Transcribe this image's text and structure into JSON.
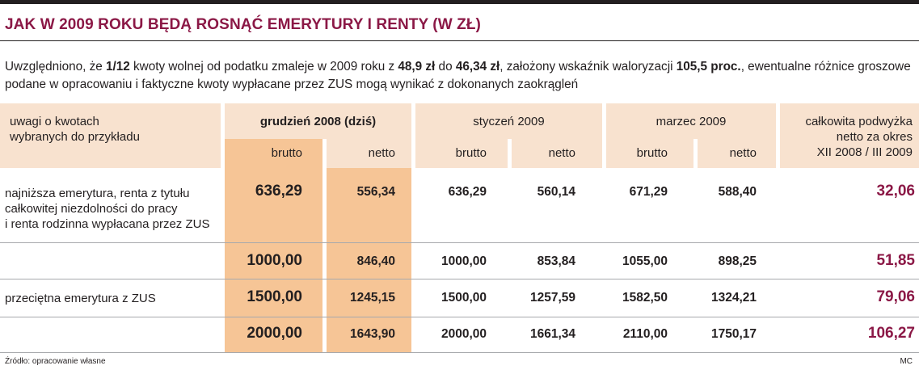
{
  "title": "JAK W 2009 ROKU BĘDĄ ROSNĄĆ EMERYTURY I RENTY (W ZŁ)",
  "intro": {
    "p1": "Uwzględniono, że ",
    "b1": "1/12",
    "p2": " kwoty wolnej od podatku zmaleje w 2009 roku z ",
    "b2": "48,9 zł",
    "p3": " do ",
    "b3": "46,34 zł",
    "p4": ", założony wskaźnik waloryzacji ",
    "b4": "105,5 proc.",
    "p5": ", ewentualne różnice groszowe podane w opracowaniu i faktyczne kwoty wypłacane przez ZUS mogą wynikać z dokonanych zaokrągleń"
  },
  "table": {
    "header": {
      "notes_line1": "uwagi o kwotach",
      "notes_line2": "wybranych do przykładu",
      "dec2008": "grudzień 2008 (dziś)",
      "jan2009": "styczeń 2009",
      "mar2009": "marzec 2009",
      "raise_line1": "całkowita podwyżka",
      "raise_line2": "netto za okres",
      "raise_line3": "XII 2008 / III 2009",
      "brutto": "brutto",
      "netto": "netto"
    },
    "rows": [
      {
        "label_lines": [
          "najniższa emerytura, renta z tytułu",
          "całkowitej niezdolności do pracy",
          "i renta rodzinna wypłacana przez ZUS"
        ],
        "dec_brutto": "636,29",
        "dec_netto": "556,34",
        "jan_brutto": "636,29",
        "jan_netto": "560,14",
        "mar_brutto": "671,29",
        "mar_netto": "588,40",
        "raise": "32,06"
      },
      {
        "label_lines": [],
        "dec_brutto": "1000,00",
        "dec_netto": "846,40",
        "jan_brutto": "1000,00",
        "jan_netto": "853,84",
        "mar_brutto": "1055,00",
        "mar_netto": "898,25",
        "raise": "51,85"
      },
      {
        "label_lines": [
          "przeciętna emerytura z ZUS"
        ],
        "dec_brutto": "1500,00",
        "dec_netto": "1245,15",
        "jan_brutto": "1500,00",
        "jan_netto": "1257,59",
        "mar_brutto": "1582,50",
        "mar_netto": "1324,21",
        "raise": "79,06"
      },
      {
        "label_lines": [],
        "dec_brutto": "2000,00",
        "dec_netto": "1643,90",
        "jan_brutto": "2000,00",
        "jan_netto": "1661,34",
        "mar_brutto": "2110,00",
        "mar_netto": "1750,17",
        "raise": "106,27"
      }
    ]
  },
  "footer": {
    "source": "Źródło: opracowanie własne",
    "author": "MC"
  },
  "colors": {
    "accent": "#8b1846",
    "header_bg": "#f8e2cf",
    "highlight": "#f6c596"
  }
}
